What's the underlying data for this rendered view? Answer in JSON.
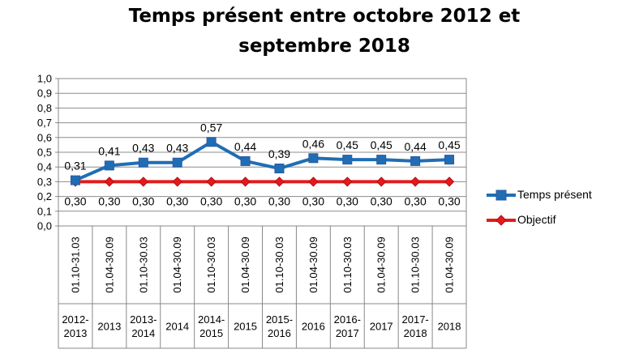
{
  "chart_data": {
    "type": "line",
    "title_lines": [
      "Temps présent entre octobre 2012 et",
      "septembre 2018"
    ],
    "categories": [
      {
        "period": "01.10-31.03",
        "year": "2012-\n2013"
      },
      {
        "period": "01.04-30.09",
        "year": "2013"
      },
      {
        "period": "01.10-30.03",
        "year": "2013-\n2014"
      },
      {
        "period": "01.04-30.09",
        "year": "2014"
      },
      {
        "period": "01.10-30.03",
        "year": "2014-\n2015"
      },
      {
        "period": "01.04-30.09",
        "year": "2015"
      },
      {
        "period": "01.10-30.03",
        "year": "2015-\n2016"
      },
      {
        "period": "01.04-30.09",
        "year": "2016"
      },
      {
        "period": "01.10-30.03",
        "year": "2016-\n2017"
      },
      {
        "period": "01.04-30.09",
        "year": "2017"
      },
      {
        "period": "01.10-30.03",
        "year": "2017-\n2018"
      },
      {
        "period": "01.04-30.09",
        "year": "2018"
      }
    ],
    "series": [
      {
        "name": "Temps présent",
        "color": "#1F6EB5",
        "marker": "square",
        "values": [
          0.31,
          0.41,
          0.43,
          0.43,
          0.57,
          0.44,
          0.39,
          0.46,
          0.45,
          0.45,
          0.44,
          0.45
        ],
        "labels": [
          "0,31",
          "0,41",
          "0,43",
          "0,43",
          "0,57",
          "0,44",
          "0,39",
          "0,46",
          "0,45",
          "0,45",
          "0,44",
          "0,45"
        ]
      },
      {
        "name": "Objectif",
        "color": "#E41A1A",
        "marker": "diamond",
        "values": [
          0.3,
          0.3,
          0.3,
          0.3,
          0.3,
          0.3,
          0.3,
          0.3,
          0.3,
          0.3,
          0.3,
          0.3
        ],
        "labels": [
          "0,30",
          "0,30",
          "0,30",
          "0,30",
          "0,30",
          "0,30",
          "0,30",
          "0,30",
          "0,30",
          "0,30",
          "0,30",
          "0,30"
        ]
      }
    ],
    "y_ticks": [
      "0,0",
      "0,1",
      "0,2",
      "0,3",
      "0,4",
      "0,5",
      "0,6",
      "0,7",
      "0,8",
      "0,9",
      "1,0"
    ],
    "ylim": [
      0,
      1.0
    ],
    "grid": true,
    "legend_position": "right"
  }
}
